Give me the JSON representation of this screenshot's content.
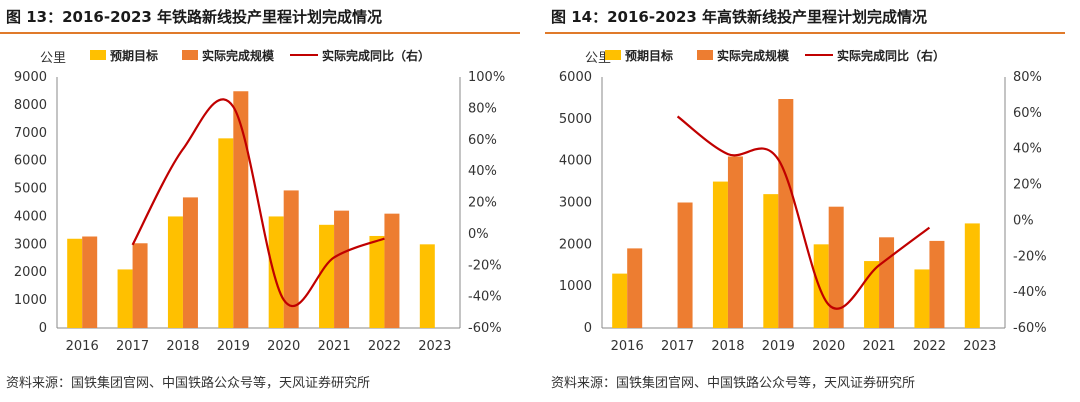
{
  "colors": {
    "target": "#ffc000",
    "actual": "#ed7d31",
    "ratio": "#c00000",
    "rule": "#e07a2a"
  },
  "panels": [
    {
      "title": "图 13：2016-2023 年铁路新线投产里程计划完成情况",
      "source": "资料来源：国铁集团官网、中国铁路公众号等，天风证券研究所"
    },
    {
      "title": "图 14：2016-2023 年高铁新线投产里程计划完成情况",
      "source": "资料来源：国铁集团官网、中国铁路公众号等，天风证券研究所"
    }
  ],
  "chart_data": [
    {
      "type": "bar",
      "title": "2016-2023 年铁路新线投产里程计划完成情况",
      "ylabel": "公里",
      "categories": [
        "2016",
        "2017",
        "2018",
        "2019",
        "2020",
        "2021",
        "2022",
        "2023"
      ],
      "ylim": [
        0,
        9000
      ],
      "yticks": [
        0,
        1000,
        2000,
        3000,
        4000,
        5000,
        6000,
        7000,
        8000,
        9000
      ],
      "y2lim": [
        -60,
        100
      ],
      "y2ticks": [
        -60,
        -40,
        -20,
        0,
        20,
        40,
        60,
        80,
        100
      ],
      "y2tick_labels": [
        "-60%",
        "-40%",
        "-20%",
        "0%",
        "20%",
        "40%",
        "60%",
        "80%",
        "100%"
      ],
      "series": [
        {
          "name": "预期目标",
          "kind": "bar",
          "values": [
            3200,
            2100,
            4000,
            6800,
            4000,
            3700,
            3300,
            3000
          ]
        },
        {
          "name": "实际完成规模",
          "kind": "bar",
          "values": [
            3281,
            3038,
            4683,
            8489,
            4933,
            4208,
            4100,
            null
          ]
        },
        {
          "name": "实际完成同比（右）",
          "kind": "line",
          "axis": "right",
          "values": [
            null,
            -7,
            54,
            81,
            -42,
            -15,
            -3,
            null
          ]
        }
      ]
    },
    {
      "type": "bar",
      "title": "2016-2023 年高铁新线投产里程计划完成情况",
      "ylabel": "公里",
      "categories": [
        "2016",
        "2017",
        "2018",
        "2019",
        "2020",
        "2021",
        "2022",
        "2023"
      ],
      "ylim": [
        0,
        6000
      ],
      "yticks": [
        0,
        1000,
        2000,
        3000,
        4000,
        5000,
        6000
      ],
      "y2lim": [
        -60,
        80
      ],
      "y2ticks": [
        -60,
        -40,
        -20,
        0,
        20,
        40,
        60,
        80
      ],
      "y2tick_labels": [
        "-60%",
        "-40%",
        "-20%",
        "0%",
        "20%",
        "40%",
        "60%",
        "80%"
      ],
      "series": [
        {
          "name": "预期目标",
          "kind": "bar",
          "values": [
            1300,
            null,
            3500,
            3200,
            2000,
            1600,
            1400,
            2500
          ]
        },
        {
          "name": "实际完成规模",
          "kind": "bar",
          "values": [
            1903,
            3000,
            4100,
            5474,
            2900,
            2168,
            2082,
            null
          ]
        },
        {
          "name": "实际完成同比（右）",
          "kind": "line",
          "axis": "right",
          "values": [
            null,
            58,
            37,
            34,
            -47,
            -25,
            -4,
            null
          ]
        }
      ]
    }
  ]
}
